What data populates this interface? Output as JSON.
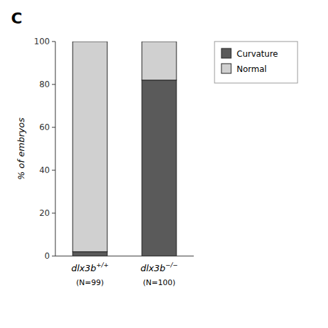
{
  "chart_data": {
    "type": "bar",
    "stacked": true,
    "title": "C",
    "y_label": "% of embryos",
    "categories": [
      "dlx3b+/+",
      "dlx3b−/−"
    ],
    "annotations": [
      "(N=99)",
      "(N=100)"
    ],
    "series": [
      {
        "name": "Curvature",
        "color": "#5a5a5a",
        "values": [
          2,
          82
        ]
      },
      {
        "name": "Normal",
        "color": "#d0d0d0",
        "values": [
          98,
          18
        ]
      }
    ],
    "ylim": [
      0,
      100
    ],
    "yticks": [
      0,
      20,
      40,
      60,
      80,
      100
    ],
    "grid": false,
    "legend": "upper right"
  }
}
